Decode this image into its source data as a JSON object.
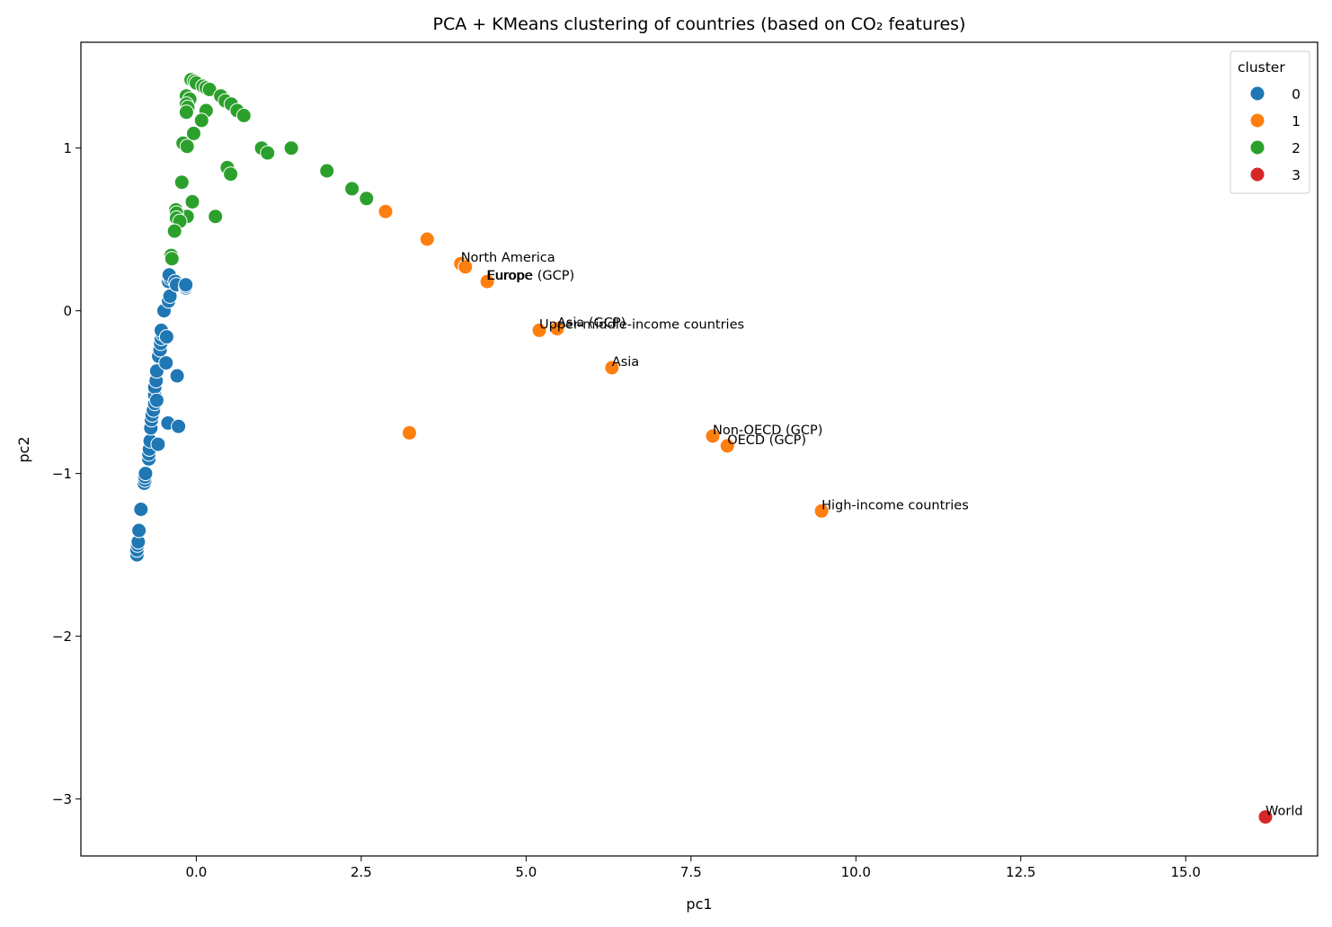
{
  "chart_data": {
    "type": "scatter",
    "title": "PCA + KMeans clustering of countries (based on CO₂ features)",
    "xlabel": "pc1",
    "ylabel": "pc2",
    "xlim": [
      -1.75,
      17.0
    ],
    "ylim": [
      -3.35,
      1.65
    ],
    "xticks": [
      0.0,
      2.5,
      5.0,
      7.5,
      10.0,
      12.5,
      15.0
    ],
    "xtick_labels": [
      "0.0",
      "2.5",
      "5.0",
      "7.5",
      "10.0",
      "12.5",
      "15.0"
    ],
    "yticks": [
      1,
      0,
      -1,
      -2,
      -3
    ],
    "ytick_labels": [
      "1",
      "0",
      "−1",
      "−2",
      "−3"
    ],
    "grid": false,
    "legend": {
      "title": "cluster",
      "placement": "top-right",
      "entries": [
        "0",
        "1",
        "2",
        "3"
      ]
    },
    "colors": {
      "0": "#1f77b4",
      "1": "#ff7f0e",
      "2": "#2ca02c",
      "3": "#d62728"
    },
    "series": [
      {
        "name": "0",
        "points": [
          [
            -0.9,
            -1.5
          ],
          [
            -0.9,
            -1.47
          ],
          [
            -0.89,
            -1.44
          ],
          [
            -0.88,
            -1.42
          ],
          [
            -0.87,
            -1.35
          ],
          [
            -0.84,
            -1.22
          ],
          [
            -0.79,
            -1.06
          ],
          [
            -0.78,
            -1.04
          ],
          [
            -0.78,
            -1.02
          ],
          [
            -0.77,
            -1.0
          ],
          [
            -0.72,
            -0.91
          ],
          [
            -0.72,
            -0.88
          ],
          [
            -0.71,
            -0.85
          ],
          [
            -0.7,
            -0.8
          ],
          [
            -0.69,
            -0.72
          ],
          [
            -0.68,
            -0.67
          ],
          [
            -0.67,
            -0.64
          ],
          [
            -0.65,
            -0.61
          ],
          [
            -0.58,
            -0.82
          ],
          [
            -0.63,
            -0.57
          ],
          [
            -0.63,
            -0.52
          ],
          [
            -0.63,
            -0.47
          ],
          [
            -0.6,
            -0.55
          ],
          [
            -0.61,
            -0.43
          ],
          [
            -0.6,
            -0.37
          ],
          [
            -0.57,
            -0.28
          ],
          [
            -0.55,
            -0.24
          ],
          [
            -0.54,
            -0.2
          ],
          [
            -0.53,
            -0.17
          ],
          [
            -0.52,
            -0.14
          ],
          [
            -0.53,
            -0.12
          ],
          [
            -0.45,
            -0.16
          ],
          [
            -0.46,
            -0.32
          ],
          [
            -0.43,
            -0.69
          ],
          [
            -0.27,
            -0.71
          ],
          [
            -0.29,
            -0.4
          ],
          [
            -0.49,
            0.0
          ],
          [
            -0.42,
            0.06
          ],
          [
            -0.4,
            0.09
          ],
          [
            -0.42,
            0.18
          ],
          [
            -0.4,
            0.2
          ],
          [
            -0.41,
            0.22
          ],
          [
            -0.32,
            0.18
          ],
          [
            -0.3,
            0.16
          ],
          [
            -0.16,
            0.14
          ],
          [
            -0.16,
            0.15
          ],
          [
            -0.16,
            0.16
          ]
        ]
      },
      {
        "name": "1",
        "points": [
          [
            2.87,
            0.61
          ],
          [
            3.5,
            0.44
          ],
          [
            4.01,
            0.29
          ],
          [
            4.08,
            0.27
          ],
          [
            4.4,
            0.18
          ],
          [
            4.41,
            0.18
          ],
          [
            5.2,
            -0.12
          ],
          [
            5.47,
            -0.11
          ],
          [
            6.3,
            -0.35
          ],
          [
            3.23,
            -0.75
          ],
          [
            7.83,
            -0.77
          ],
          [
            8.05,
            -0.83
          ],
          [
            9.48,
            -1.23
          ]
        ],
        "labels": [
          {
            "text": "North America",
            "x": 4.01,
            "y": 0.29
          },
          {
            "text": "Europe",
            "x": 4.4,
            "y": 0.18
          },
          {
            "text": "Europe (GCP)",
            "x": 4.41,
            "y": 0.18
          },
          {
            "text": "Upper-middle-income countries",
            "x": 5.2,
            "y": -0.12
          },
          {
            "text": "Asia (GCP)",
            "x": 5.47,
            "y": -0.11
          },
          {
            "text": "Asia",
            "x": 6.3,
            "y": -0.35
          },
          {
            "text": "Non-OECD (GCP)",
            "x": 7.83,
            "y": -0.77
          },
          {
            "text": "OECD (GCP)",
            "x": 8.05,
            "y": -0.83
          },
          {
            "text": "High-income countries",
            "x": 9.48,
            "y": -1.23
          }
        ]
      },
      {
        "name": "2",
        "points": [
          [
            -0.08,
            1.42
          ],
          [
            -0.03,
            1.41
          ],
          [
            0.0,
            1.4
          ],
          [
            0.1,
            1.38
          ],
          [
            0.15,
            1.37
          ],
          [
            0.2,
            1.36
          ],
          [
            0.37,
            1.32
          ],
          [
            0.44,
            1.29
          ],
          [
            0.53,
            1.27
          ],
          [
            0.62,
            1.23
          ],
          [
            0.72,
            1.2
          ],
          [
            -0.15,
            1.32
          ],
          [
            -0.1,
            1.3
          ],
          [
            -0.15,
            1.27
          ],
          [
            -0.13,
            1.25
          ],
          [
            -0.15,
            1.22
          ],
          [
            0.15,
            1.23
          ],
          [
            0.08,
            1.17
          ],
          [
            -0.04,
            1.09
          ],
          [
            -0.2,
            1.03
          ],
          [
            -0.14,
            1.01
          ],
          [
            0.99,
            1.0
          ],
          [
            1.08,
            0.97
          ],
          [
            1.44,
            1.0
          ],
          [
            1.98,
            0.86
          ],
          [
            0.47,
            0.88
          ],
          [
            0.52,
            0.84
          ],
          [
            2.36,
            0.75
          ],
          [
            2.58,
            0.69
          ],
          [
            -0.22,
            0.79
          ],
          [
            -0.06,
            0.67
          ],
          [
            -0.14,
            0.58
          ],
          [
            0.29,
            0.58
          ],
          [
            -0.31,
            0.62
          ],
          [
            -0.3,
            0.6
          ],
          [
            -0.3,
            0.57
          ],
          [
            -0.25,
            0.55
          ],
          [
            -0.33,
            0.49
          ],
          [
            -0.38,
            0.34
          ],
          [
            -0.37,
            0.32
          ]
        ]
      },
      {
        "name": "3",
        "points": [
          [
            16.21,
            -3.11
          ]
        ],
        "labels": [
          {
            "text": "World",
            "x": 16.21,
            "y": -3.11
          }
        ]
      }
    ]
  }
}
